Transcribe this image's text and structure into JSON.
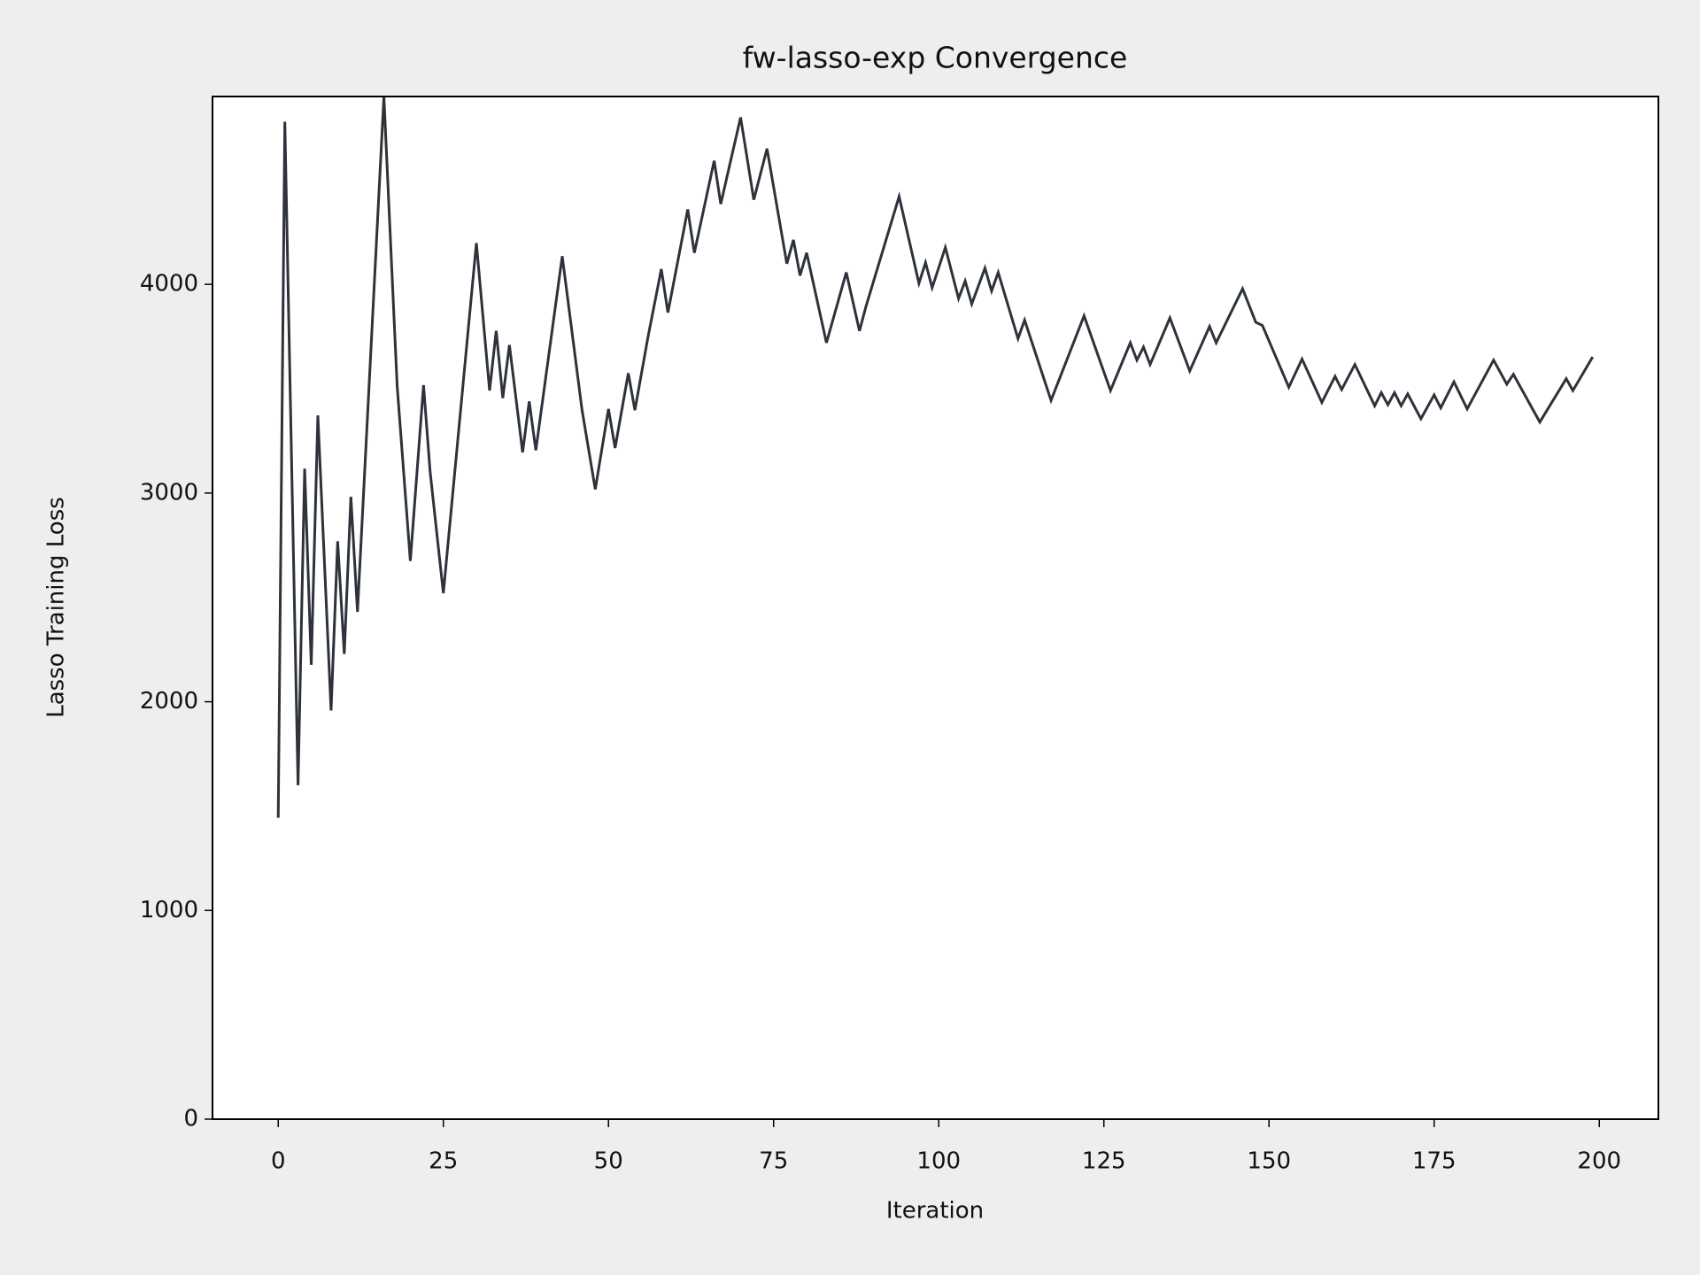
{
  "chart_data": {
    "type": "line",
    "title": "fw-lasso-exp Convergence",
    "x_label": "Iteration",
    "y_label": "Lasso Training Loss",
    "x": [
      0,
      1,
      3,
      4,
      5,
      6,
      8,
      9,
      10,
      11,
      12,
      16,
      18,
      20,
      22,
      23,
      25,
      30,
      32,
      33,
      34,
      35,
      37,
      38,
      39,
      43,
      46,
      48,
      50,
      51,
      53,
      54,
      56,
      58,
      59,
      62,
      63,
      66,
      67,
      70,
      72,
      74,
      77,
      78,
      79,
      80,
      83,
      86,
      88,
      89,
      94,
      97,
      98,
      99,
      101,
      103,
      104,
      105,
      107,
      108,
      109,
      112,
      113,
      117,
      122,
      126,
      129,
      130,
      131,
      132,
      135,
      138,
      141,
      142,
      146,
      148,
      149,
      153,
      155,
      158,
      160,
      161,
      163,
      166,
      167,
      168,
      169,
      170,
      171,
      173,
      175,
      176,
      178,
      180,
      184,
      186,
      187,
      191,
      195,
      196,
      199
    ],
    "series": [
      {
        "name": "Lasso Training Loss",
        "color": "#2d323b",
        "values": [
          1444,
          4779,
          1600,
          3117,
          2177,
          3372,
          1958,
          2769,
          2229,
          2982,
          2431,
          4900,
          3517,
          2675,
          3517,
          3101,
          2520,
          4198,
          3491,
          3777,
          3455,
          3709,
          3195,
          3439,
          3205,
          4135,
          3397,
          3018,
          3403,
          3216,
          3574,
          3397,
          3751,
          4073,
          3865,
          4359,
          4151,
          4592,
          4385,
          4800,
          4405,
          4650,
          4099,
          4213,
          4042,
          4151,
          3720,
          4057,
          3777,
          3896,
          4421,
          4005,
          4104,
          3984,
          4177,
          3932,
          4016,
          3906,
          4078,
          3968,
          4057,
          3740,
          3829,
          3444,
          3849,
          3491,
          3720,
          3637,
          3699,
          3616,
          3839,
          3585,
          3798,
          3720,
          3979,
          3818,
          3803,
          3507,
          3642,
          3434,
          3559,
          3496,
          3616,
          3418,
          3481,
          3423,
          3481,
          3418,
          3475,
          3356,
          3470,
          3408,
          3533,
          3403,
          3637,
          3522,
          3569,
          3340,
          3548,
          3491,
          3652
        ]
      }
    ],
    "xlim": [
      -9.95,
      208.95
    ],
    "ylim": [
      0,
      4900
    ],
    "xticks": [
      0,
      25,
      50,
      75,
      100,
      125,
      150,
      175,
      200
    ],
    "yticks": [
      0,
      1000,
      2000,
      3000,
      4000
    ]
  }
}
